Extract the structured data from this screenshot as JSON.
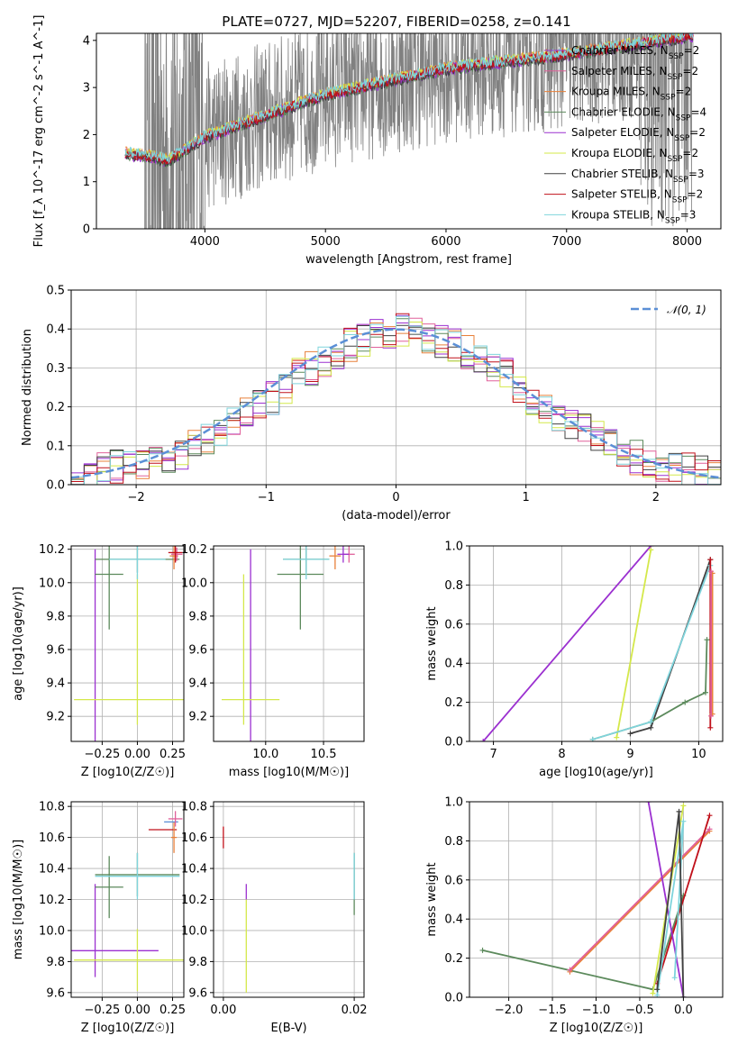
{
  "figure": {
    "title": "PLATE=0727, MJD=52207, FIBERID=0258, z=0.141"
  },
  "models": [
    {
      "name": "Chabrier MILES",
      "color": "#9b30d0",
      "nssp": "2"
    },
    {
      "name": "Salpeter MILES",
      "color": "#e0609a",
      "nssp": "2"
    },
    {
      "name": "Kroupa MILES",
      "color": "#e8803a",
      "nssp": "2"
    },
    {
      "name": "Chabrier ELODIE",
      "color": "#5c8a5c",
      "nssp": "4"
    },
    {
      "name": "Salpeter ELODIE",
      "color": "#9b30d0",
      "nssp": "2"
    },
    {
      "name": "Kroupa ELODIE",
      "color": "#d4e84a",
      "nssp": "2"
    },
    {
      "name": "Chabrier STELIB",
      "color": "#404040",
      "nssp": "3"
    },
    {
      "name": "Salpeter STELIB",
      "color": "#c0101a",
      "nssp": "2"
    },
    {
      "name": "Kroupa STELIB",
      "color": "#7fd4dc",
      "nssp": "3"
    }
  ],
  "chart_data": [
    {
      "id": "spectrum",
      "type": "line",
      "xlabel": "wavelength [Angstrom, rest frame]",
      "ylabel": "Flux [f_λ 10^-17 erg cm^-2 s^-1 A^-1]",
      "xlim": [
        3100,
        8280
      ],
      "ylim": [
        0,
        4.15
      ],
      "xticks": [
        4000,
        5000,
        6000,
        7000,
        8000
      ],
      "yticks": [
        0,
        1,
        2,
        3,
        4
      ],
      "data_color": "#808080",
      "data_range": [
        3500,
        8050
      ],
      "model_range": [
        3340,
        8050
      ],
      "continuum": {
        "x": [
          3340,
          3500,
          3700,
          4000,
          4500,
          5000,
          6000,
          7000,
          8050
        ],
        "y": [
          1.6,
          1.55,
          1.45,
          1.95,
          2.4,
          2.85,
          3.4,
          3.7,
          4.1
        ]
      },
      "legend": "upper right"
    },
    {
      "id": "residuals",
      "type": "histogram",
      "xlabel": "(data-model)/error",
      "ylabel": "Normed distribution",
      "xlim": [
        -2.5,
        2.5
      ],
      "ylim": [
        0,
        0.5
      ],
      "xticks": [
        -2,
        -1,
        0,
        1,
        2
      ],
      "yticks": [
        0.0,
        0.1,
        0.2,
        0.3,
        0.4,
        0.5
      ],
      "normal_label": "𝒩(0, 1)",
      "normal_color": "#5b8fd6",
      "bin_width": 0.1,
      "bin_start": -2.5,
      "base_values": [
        0.02,
        0.03,
        0.04,
        0.045,
        0.05,
        0.055,
        0.06,
        0.07,
        0.085,
        0.1,
        0.12,
        0.14,
        0.16,
        0.18,
        0.2,
        0.22,
        0.25,
        0.28,
        0.3,
        0.32,
        0.34,
        0.36,
        0.37,
        0.38,
        0.39,
        0.4,
        0.39,
        0.38,
        0.37,
        0.36,
        0.34,
        0.32,
        0.3,
        0.28,
        0.25,
        0.22,
        0.2,
        0.18,
        0.16,
        0.14,
        0.12,
        0.1,
        0.085,
        0.07,
        0.06,
        0.05,
        0.045,
        0.04,
        0.03,
        0.02
      ],
      "legend": "upper right"
    },
    {
      "id": "age-vs-Z",
      "type": "errorbar",
      "xlabel": "Z [log10(Z/Z☉)]",
      "ylabel": "age [log10(age/yr)]",
      "xlim": [
        -0.47,
        0.33
      ],
      "ylim": [
        9.05,
        10.22
      ],
      "xticks": [
        -0.25,
        0.0,
        0.25
      ],
      "yticks": [
        9.2,
        9.4,
        9.6,
        9.8,
        10.0,
        10.2
      ],
      "points": [
        {
          "model": 4,
          "x": -0.3,
          "y": 9.3,
          "xerr": 0.0,
          "yerr": 0.9,
          "color": "#9b30d0"
        },
        {
          "model": 5,
          "x": 0.0,
          "y": 9.3,
          "xerr": 0.45,
          "yerr": 0.0,
          "color": "#d4e84a"
        },
        {
          "model": 5,
          "x": 0.0,
          "y": 9.6,
          "xerr": 0.0,
          "yerr": 0.45,
          "color": "#d4e84a"
        },
        {
          "model": 3,
          "x": -0.2,
          "y": 10.05,
          "xerr": 0.1,
          "yerr": 0.33,
          "color": "#5c8a5c"
        },
        {
          "model": 3,
          "x": 0.0,
          "y": 10.14,
          "xerr": 0.3,
          "yerr": 0.08,
          "color": "#5c8a5c"
        },
        {
          "model": 8,
          "x": 0.0,
          "y": 10.14,
          "xerr": 0.2,
          "yerr": 0.12,
          "color": "#7fd4dc"
        },
        {
          "model": 2,
          "x": 0.26,
          "y": 10.16,
          "xerr": 0.03,
          "yerr": 0.08,
          "color": "#e8803a"
        },
        {
          "model": 1,
          "x": 0.28,
          "y": 10.17,
          "xerr": 0.04,
          "yerr": 0.04,
          "color": "#e0609a"
        },
        {
          "model": 7,
          "x": 0.27,
          "y": 10.18,
          "xerr": 0.05,
          "yerr": 0.06,
          "color": "#c0101a"
        }
      ]
    },
    {
      "id": "age-vs-mass",
      "type": "errorbar",
      "xlabel": "mass [log10(M/M☉)]",
      "ylabel": "",
      "xlim": [
        9.55,
        10.85
      ],
      "ylim": [
        9.05,
        10.22
      ],
      "xticks": [
        10.0,
        10.5
      ],
      "yticks": [
        9.2,
        9.4,
        9.6,
        9.8,
        10.0,
        10.2
      ],
      "points": [
        {
          "model": 4,
          "x": 9.87,
          "y": 9.3,
          "xerr": 0.0,
          "yerr": 0.9,
          "color": "#9b30d0"
        },
        {
          "model": 5,
          "x": 9.87,
          "y": 9.3,
          "xerr": 0.25,
          "yerr": 0.0,
          "color": "#d4e84a"
        },
        {
          "model": 5,
          "x": 9.81,
          "y": 9.6,
          "xerr": 0.0,
          "yerr": 0.45,
          "color": "#d4e84a"
        },
        {
          "model": 3,
          "x": 10.3,
          "y": 10.05,
          "xerr": 0.2,
          "yerr": 0.33,
          "color": "#5c8a5c"
        },
        {
          "model": 3,
          "x": 10.35,
          "y": 10.14,
          "xerr": 0.2,
          "yerr": 0.08,
          "color": "#5c8a5c"
        },
        {
          "model": 8,
          "x": 10.35,
          "y": 10.14,
          "xerr": 0.2,
          "yerr": 0.12,
          "color": "#7fd4dc"
        },
        {
          "model": 2,
          "x": 10.6,
          "y": 10.16,
          "xerr": 0.05,
          "yerr": 0.08,
          "color": "#e8803a"
        },
        {
          "model": 1,
          "x": 10.72,
          "y": 10.17,
          "xerr": 0.05,
          "yerr": 0.05,
          "color": "#e0609a"
        },
        {
          "model": 0,
          "x": 10.67,
          "y": 10.17,
          "xerr": 0.05,
          "yerr": 0.05,
          "color": "#9b30d0"
        }
      ]
    },
    {
      "id": "massweight-vs-age",
      "type": "line",
      "xlabel": "age [log10(age/yr)]",
      "ylabel": "mass weight",
      "xlim": [
        6.65,
        10.35
      ],
      "ylim": [
        0,
        1
      ],
      "xticks": [
        7,
        8,
        9,
        10
      ],
      "yticks": [
        0.0,
        0.2,
        0.4,
        0.6,
        0.8,
        1.0
      ],
      "series": [
        {
          "model": 4,
          "color": "#9b30d0",
          "x": [
            6.85,
            9.3
          ],
          "y": [
            0.0,
            1.0
          ]
        },
        {
          "model": 5,
          "color": "#d4e84a",
          "x": [
            8.8,
            9.3
          ],
          "y": [
            0.02,
            0.98
          ]
        },
        {
          "model": 6,
          "color": "#404040",
          "x": [
            9.0,
            9.3,
            10.17
          ],
          "y": [
            0.04,
            0.07,
            0.93
          ]
        },
        {
          "model": 3,
          "color": "#5c8a5c",
          "x": [
            8.45,
            9.3,
            9.8,
            10.1,
            10.12
          ],
          "y": [
            0.01,
            0.1,
            0.2,
            0.25,
            0.52
          ]
        },
        {
          "model": 8,
          "color": "#7fd4dc",
          "x": [
            8.45,
            9.3,
            10.17
          ],
          "y": [
            0.01,
            0.1,
            0.9
          ]
        },
        {
          "model": 7,
          "color": "#c0101a",
          "x": [
            10.17,
            10.17
          ],
          "y": [
            0.07,
            0.93
          ]
        },
        {
          "model": 2,
          "color": "#e8803a",
          "x": [
            10.2,
            10.2
          ],
          "y": [
            0.14,
            0.86
          ]
        },
        {
          "model": 1,
          "color": "#e0609a",
          "x": [
            10.18,
            10.18
          ],
          "y": [
            0.13,
            0.87
          ]
        }
      ]
    },
    {
      "id": "mass-vs-Z",
      "type": "errorbar",
      "xlabel": "Z [log10(Z/Z☉)]",
      "ylabel": "mass [log10(M/M☉)]",
      "xlim": [
        -0.47,
        0.33
      ],
      "ylim": [
        9.57,
        10.83
      ],
      "xticks": [
        -0.25,
        0.0,
        0.25
      ],
      "yticks": [
        9.6,
        9.8,
        10.0,
        10.2,
        10.4,
        10.6,
        10.8
      ],
      "points": [
        {
          "model": 4,
          "x": -0.3,
          "y": 9.87,
          "xerr": 0.45,
          "yerr": 0.0,
          "color": "#9b30d0"
        },
        {
          "model": 4,
          "x": -0.3,
          "y": 10.0,
          "xerr": 0.0,
          "yerr": 0.3,
          "color": "#9b30d0"
        },
        {
          "model": 5,
          "x": 0.0,
          "y": 9.81,
          "xerr": 0.45,
          "yerr": 0.2,
          "color": "#d4e84a"
        },
        {
          "model": 3,
          "x": -0.2,
          "y": 10.28,
          "xerr": 0.1,
          "yerr": 0.2,
          "color": "#5c8a5c"
        },
        {
          "model": 3,
          "x": 0.0,
          "y": 10.36,
          "xerr": 0.3,
          "yerr": 0.14,
          "color": "#5c8a5c"
        },
        {
          "model": 8,
          "x": 0.0,
          "y": 10.35,
          "xerr": 0.3,
          "yerr": 0.15,
          "color": "#7fd4dc"
        },
        {
          "model": 7,
          "x": 0.18,
          "y": 10.65,
          "xerr": 0.1,
          "yerr": 0.0,
          "color": "#c0101a"
        },
        {
          "model": 2,
          "x": 0.26,
          "y": 10.6,
          "xerr": 0.02,
          "yerr": 0.1,
          "color": "#e8803a"
        },
        {
          "model": 8,
          "x": 0.24,
          "y": 10.7,
          "xerr": 0.05,
          "yerr": 0.0,
          "color": "#5b8fd6"
        },
        {
          "model": 1,
          "x": 0.27,
          "y": 10.72,
          "xerr": 0.05,
          "yerr": 0.05,
          "color": "#e0609a"
        }
      ]
    },
    {
      "id": "mass-vs-EBV",
      "type": "errorbar",
      "xlabel": "E(B-V)",
      "ylabel": "",
      "xlim": [
        -0.0015,
        0.0215
      ],
      "ylim": [
        9.57,
        10.83
      ],
      "xticks": [
        0.0,
        0.02
      ],
      "yticks": [
        9.6,
        9.8,
        10.0,
        10.2,
        10.4,
        10.6,
        10.8
      ],
      "points": [
        {
          "model": 7,
          "x": 0.0,
          "y": 10.6,
          "xerr": 0.0,
          "yerr": 0.07,
          "color": "#c0101a"
        },
        {
          "model": 4,
          "x": 0.0035,
          "y": 10.25,
          "xerr": 0.0,
          "yerr": 0.05,
          "color": "#9b30d0"
        },
        {
          "model": 5,
          "x": 0.0035,
          "y": 9.9,
          "xerr": 0.0,
          "yerr": 0.3,
          "color": "#d4e84a"
        },
        {
          "model": 3,
          "x": 0.02,
          "y": 10.3,
          "xerr": 0.0,
          "yerr": 0.2,
          "color": "#5c8a5c"
        },
        {
          "model": 8,
          "x": 0.02,
          "y": 10.35,
          "xerr": 0.0,
          "yerr": 0.15,
          "color": "#7fd4dc"
        }
      ]
    },
    {
      "id": "massweight-vs-Z",
      "type": "line",
      "xlabel": "Z [log10(Z/Z☉)]",
      "ylabel": "mass weight",
      "xlim": [
        -2.45,
        0.45
      ],
      "ylim": [
        0,
        1
      ],
      "xticks": [
        -2.0,
        -1.5,
        -1.0,
        -0.5,
        0.0
      ],
      "yticks": [
        0.0,
        0.2,
        0.4,
        0.6,
        0.8,
        1.0
      ],
      "series": [
        {
          "model": 3,
          "color": "#5c8a5c",
          "x": [
            -2.3,
            -0.35,
            0.0
          ],
          "y": [
            0.24,
            0.04,
            0.52
          ]
        },
        {
          "model": 2,
          "color": "#e8803a",
          "x": [
            -1.3,
            0.3
          ],
          "y": [
            0.13,
            0.85
          ]
        },
        {
          "model": 1,
          "color": "#e0609a",
          "x": [
            -1.3,
            0.3
          ],
          "y": [
            0.14,
            0.86
          ]
        },
        {
          "model": 7,
          "color": "#c0101a",
          "x": [
            -0.3,
            0.3
          ],
          "y": [
            0.07,
            0.93
          ]
        },
        {
          "model": 4,
          "color": "#9b30d0",
          "x": [
            -0.4,
            0.0
          ],
          "y": [
            1.0,
            0.0
          ]
        },
        {
          "model": 5,
          "color": "#d4e84a",
          "x": [
            -0.35,
            0.0
          ],
          "y": [
            0.02,
            0.98
          ]
        },
        {
          "model": 8,
          "color": "#7fd4dc",
          "x": [
            -0.3,
            0.0,
            -0.1
          ],
          "y": [
            0.01,
            0.9,
            0.1
          ]
        },
        {
          "model": 6,
          "color": "#404040",
          "x": [
            -0.3,
            -0.05,
            0.0
          ],
          "y": [
            0.04,
            0.95,
            0.0
          ]
        }
      ]
    }
  ]
}
